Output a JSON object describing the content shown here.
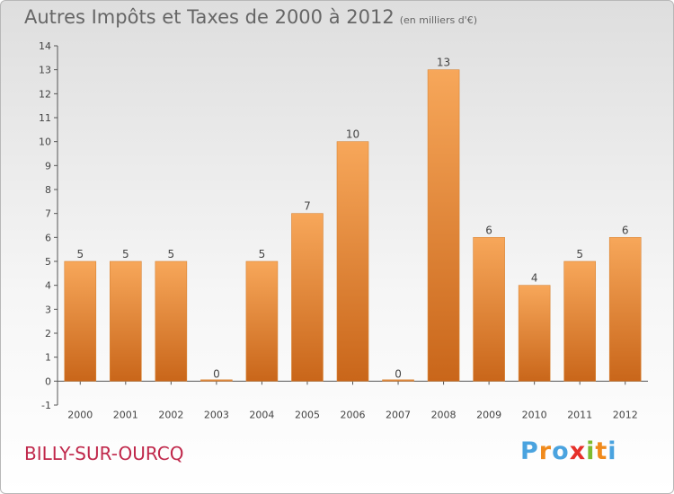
{
  "header": {
    "title": "Autres Impôts et Taxes de 2000 à 2012",
    "unit": "(en milliers d'€)"
  },
  "footer": {
    "town": "BILLY-SUR-OURCQ",
    "logo_text": "Proxiti"
  },
  "colors": {
    "bar_top": "#f7a75a",
    "bar_bottom": "#c9661a",
    "axis": "#555555",
    "town": "#c0284b",
    "logo": [
      "#4aa3df",
      "#f08a1c",
      "#4aa3df",
      "#e6302a",
      "#7dbb2f",
      "#f08a1c",
      "#4aa3df"
    ]
  },
  "chart_data": {
    "type": "bar",
    "title": "Autres Impôts et Taxes de 2000 à 2012",
    "ylabel": "",
    "xlabel": "",
    "categories": [
      "2000",
      "2001",
      "2002",
      "2003",
      "2004",
      "2005",
      "2006",
      "2007",
      "2008",
      "2009",
      "2010",
      "2011",
      "2012"
    ],
    "values": [
      5,
      5,
      5,
      0,
      5,
      7,
      10,
      0,
      13,
      6,
      4,
      5,
      6
    ],
    "ylim": [
      -1,
      14
    ],
    "yticks": [
      "-1",
      "0",
      "1",
      "2",
      "3",
      "4",
      "5",
      "6",
      "7",
      "8",
      "9",
      "10",
      "11",
      "12",
      "13",
      "14"
    ],
    "grid": false,
    "legend": "none"
  }
}
